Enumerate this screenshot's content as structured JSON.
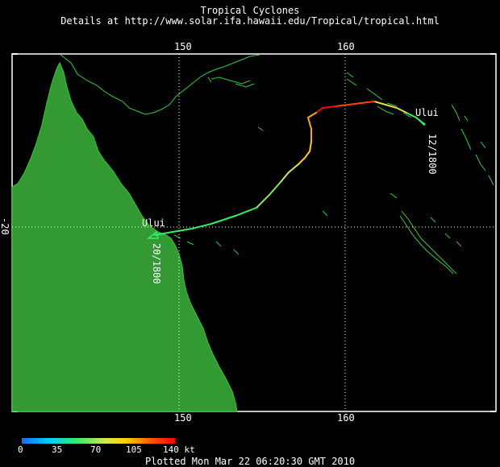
{
  "header": {
    "title": "Tropical Cyclones",
    "details": "Details at http://www.solar.ifa.hawaii.edu/Tropical/tropical.html"
  },
  "map": {
    "lon_labels_top": [
      "150",
      "160"
    ],
    "lon_labels_bottom": [
      "150",
      "160"
    ],
    "lat_label_left": "-20",
    "land_color": "#339933",
    "coast_color": "#33cc33",
    "grid_color": "#ffffff"
  },
  "storm": {
    "name_start": "Ului",
    "start_time": "12/1800",
    "name_end": "Ului",
    "end_time": "20/1800"
  },
  "legend": {
    "ticks": [
      "0",
      "35",
      "70",
      "105",
      "140 kt"
    ]
  },
  "footer": {
    "plotted": "Plotted Mon Mar 22 06:20:30 GMT 2010"
  }
}
